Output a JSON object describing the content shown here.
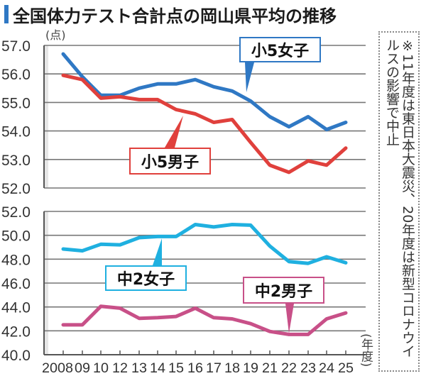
{
  "title": "全国体力テスト合計点の岡山県平均の推移",
  "note": "※11年度は東日本大震災、20年度は新型コロナウイルスの影響で中止",
  "units": {
    "y": "(点)",
    "x": "(年度)"
  },
  "colors": {
    "accent": "#2f78c4",
    "shou5_girls": "#2f78c4",
    "shou5_boys": "#e0403c",
    "chu2_girls": "#1fb0e0",
    "chu2_boys": "#c85088",
    "grid": "#777777",
    "axis_shade": "#e6e6e6"
  },
  "labels": {
    "shou5_girls": "小5女子",
    "shou5_boys": "小5男子",
    "chu2_girls": "中2女子",
    "chu2_boys": "中2男子"
  },
  "chart_data": [
    {
      "type": "line",
      "title": "全国体力テスト合計点の岡山県平均の推移（小5）",
      "xlabel": "年度",
      "ylabel": "点",
      "categories": [
        "2008",
        "09",
        "10",
        "12",
        "13",
        "14",
        "15",
        "16",
        "17",
        "18",
        "19",
        "21",
        "22",
        "23",
        "24",
        "25"
      ],
      "yticks": [
        "57.0",
        "56.0",
        "55.0",
        "54.0",
        "53.0",
        "52.0"
      ],
      "ylim": [
        52.0,
        57.0
      ],
      "grid": true,
      "series": [
        {
          "name": "小5女子",
          "color": "#2f78c4",
          "values": [
            56.7,
            55.9,
            55.25,
            55.25,
            55.5,
            55.65,
            55.65,
            55.8,
            55.55,
            55.4,
            55.05,
            54.5,
            54.15,
            54.5,
            54.05,
            54.3
          ]
        },
        {
          "name": "小5男子",
          "color": "#e0403c",
          "values": [
            55.95,
            55.8,
            55.15,
            55.2,
            55.1,
            55.1,
            54.75,
            54.6,
            54.3,
            54.4,
            53.6,
            52.8,
            52.55,
            52.95,
            52.8,
            53.4
          ]
        }
      ]
    },
    {
      "type": "line",
      "title": "全国体力テスト合計点の岡山県平均の推移（中2）",
      "xlabel": "年度",
      "ylabel": "点",
      "categories": [
        "2008",
        "09",
        "10",
        "12",
        "13",
        "14",
        "15",
        "16",
        "17",
        "18",
        "19",
        "21",
        "22",
        "23",
        "24",
        "25"
      ],
      "yticks": [
        "52.0",
        "50.0",
        "48.0",
        "46.0",
        "44.0",
        "42.0",
        "40.0"
      ],
      "ylim": [
        40.0,
        52.0
      ],
      "grid": true,
      "series": [
        {
          "name": "中2女子",
          "color": "#1fb0e0",
          "values": [
            48.85,
            48.7,
            49.25,
            49.2,
            49.8,
            49.9,
            49.9,
            50.9,
            50.7,
            50.9,
            50.85,
            49.1,
            47.8,
            47.65,
            48.2,
            47.7
          ]
        },
        {
          "name": "中2男子",
          "color": "#c85088",
          "values": [
            42.5,
            42.5,
            44.05,
            43.9,
            43.05,
            43.1,
            43.2,
            43.9,
            43.1,
            43.0,
            42.6,
            41.95,
            41.7,
            41.7,
            43.0,
            43.5
          ]
        }
      ]
    }
  ]
}
